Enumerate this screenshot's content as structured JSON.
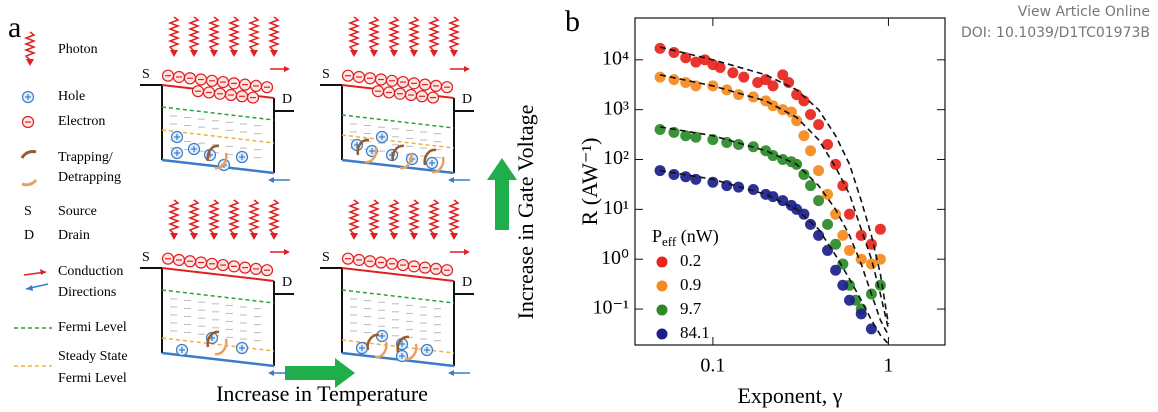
{
  "header": {
    "link": "View Article Online",
    "doi": "DOI: 10.1039/D1TC01973B"
  },
  "panel_a": {
    "label": "a",
    "legend": {
      "photon": "Photon",
      "hole": "Hole",
      "electron": "Electron",
      "trapping": [
        "Trapping/",
        "Detrapping"
      ],
      "source": {
        "symbol": "S",
        "label": "Source"
      },
      "drain": {
        "symbol": "D",
        "label": "Drain"
      },
      "conduction": [
        "Conduction",
        "Directions"
      ],
      "fermi": "Fermi Level",
      "steady": [
        "Steady State",
        "Fermi Level"
      ]
    },
    "device": {
      "source": "S",
      "drain": "D"
    },
    "x_arrow": "Increase in Temperature",
    "y_arrow": "Increase in Gate Voltage"
  },
  "chart_data": {
    "type": "scatter",
    "label": "b",
    "x_label": "Exponent, γ",
    "y_label": "R (AW⁻¹)",
    "legend_title": [
      "P",
      "eff",
      " (nW)"
    ],
    "log_x": true,
    "log_y": true,
    "xlim": [
      0.036,
      2.1
    ],
    "ylim": [
      0.019,
      69000
    ],
    "xticks": [
      0.1,
      1
    ],
    "yticks": [
      {
        "value": 10000,
        "label": "10⁴"
      },
      {
        "value": 1000,
        "label": "10³"
      },
      {
        "value": 100,
        "label": "10²"
      },
      {
        "value": 10,
        "label": "10¹"
      },
      {
        "value": 1,
        "label": "10⁰"
      },
      {
        "value": 0.1,
        "label": "10⁻¹"
      }
    ],
    "series": [
      {
        "name": "0.2",
        "color": "#e8241c",
        "x": [
          0.05,
          0.06,
          0.07,
          0.08,
          0.09,
          0.1,
          0.11,
          0.13,
          0.15,
          0.18,
          0.2,
          0.22,
          0.25,
          0.27,
          0.3,
          0.33,
          0.36,
          0.4,
          0.45,
          0.5,
          0.55,
          0.6,
          0.7,
          0.8,
          0.9
        ],
        "values": [
          17000,
          14000,
          11000,
          9000,
          10000,
          8000,
          7000,
          5500,
          4500,
          3500,
          4000,
          3000,
          5000,
          3500,
          2000,
          1500,
          800,
          500,
          200,
          80,
          30,
          8,
          3,
          2,
          4
        ]
      },
      {
        "name": "0.9",
        "color": "#f58a1f",
        "x": [
          0.05,
          0.06,
          0.07,
          0.08,
          0.1,
          0.12,
          0.14,
          0.17,
          0.2,
          0.22,
          0.25,
          0.28,
          0.3,
          0.33,
          0.36,
          0.4,
          0.45,
          0.5,
          0.55,
          0.6,
          0.7,
          0.8,
          0.9
        ],
        "values": [
          4500,
          4000,
          3500,
          3000,
          3000,
          2500,
          2000,
          1800,
          1500,
          1200,
          1000,
          900,
          600,
          300,
          150,
          60,
          20,
          8,
          3,
          1.5,
          1,
          0.8,
          1
        ]
      },
      {
        "name": "9.7",
        "color": "#2a8a28",
        "x": [
          0.05,
          0.06,
          0.07,
          0.08,
          0.1,
          0.12,
          0.14,
          0.17,
          0.2,
          0.22,
          0.25,
          0.28,
          0.3,
          0.33,
          0.36,
          0.4,
          0.45,
          0.5,
          0.55,
          0.6,
          0.65,
          0.7,
          0.8,
          0.9
        ],
        "values": [
          400,
          350,
          300,
          280,
          250,
          220,
          200,
          180,
          150,
          120,
          100,
          90,
          80,
          50,
          30,
          15,
          5,
          2,
          0.8,
          0.3,
          0.15,
          0.1,
          0.2,
          0.3
        ]
      },
      {
        "name": "84.1",
        "color": "#1b1f8a",
        "x": [
          0.05,
          0.06,
          0.07,
          0.08,
          0.1,
          0.12,
          0.14,
          0.17,
          0.2,
          0.22,
          0.25,
          0.28,
          0.3,
          0.33,
          0.36,
          0.4,
          0.45,
          0.5,
          0.55,
          0.6,
          0.7,
          0.8
        ],
        "values": [
          60,
          50,
          45,
          40,
          35,
          30,
          28,
          25,
          20,
          18,
          15,
          12,
          10,
          8,
          5,
          3,
          1.5,
          0.6,
          0.3,
          0.15,
          0.08,
          0.04
        ]
      }
    ],
    "fits": [
      {
        "x": [
          0.05,
          0.1,
          0.2,
          0.3,
          0.4,
          0.5,
          0.6,
          0.7,
          0.8,
          0.9,
          1.0
        ],
        "values": [
          18000,
          10000,
          5000,
          2500,
          1000,
          300,
          80,
          15,
          3,
          0.5,
          0.05
        ]
      },
      {
        "x": [
          0.05,
          0.1,
          0.2,
          0.3,
          0.4,
          0.5,
          0.6,
          0.7,
          0.8,
          0.9,
          1.0
        ],
        "values": [
          5000,
          3000,
          1500,
          700,
          250,
          70,
          20,
          4,
          1,
          0.2,
          0.04
        ]
      },
      {
        "x": [
          0.05,
          0.1,
          0.2,
          0.3,
          0.4,
          0.5,
          0.6,
          0.7,
          0.8,
          0.9,
          1.0
        ],
        "values": [
          450,
          300,
          150,
          80,
          30,
          10,
          3,
          0.8,
          0.2,
          0.06,
          0.03
        ]
      },
      {
        "x": [
          0.05,
          0.1,
          0.2,
          0.3,
          0.4,
          0.5,
          0.6,
          0.7,
          0.8,
          0.9,
          1.0
        ],
        "values": [
          60,
          40,
          20,
          10,
          4,
          1.2,
          0.4,
          0.15,
          0.06,
          0.03,
          0.02
        ]
      }
    ]
  }
}
